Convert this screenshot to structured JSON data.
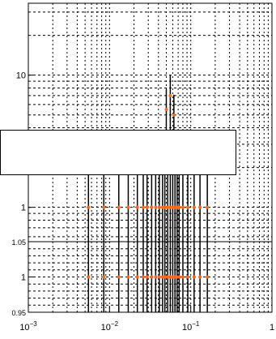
{
  "chart_data": {
    "type": "scatter",
    "x_scale": "log",
    "grid": true,
    "grid_style": "dotted",
    "colors": {
      "marker": "#ff6a1a",
      "axis": "#000000",
      "grid": "#000000"
    },
    "panels": [
      {
        "name": "upper",
        "y_scale": "log",
        "ylim": [
          0.55,
          35
        ],
        "y_tick_labels": [
          {
            "value": 1,
            "text": "1"
          },
          {
            "value": 10,
            "text": "10"
          }
        ],
        "x": [
          0.0055,
          0.0085,
          0.013,
          0.017,
          0.022,
          0.026,
          0.029,
          0.033,
          0.037,
          0.041,
          0.045,
          0.048,
          0.052,
          0.056,
          0.06,
          0.064,
          0.068,
          0.072,
          0.08,
          0.092,
          0.11,
          0.13,
          0.16
        ],
        "y": [
          1,
          1,
          1,
          1,
          1,
          1,
          1,
          1,
          1,
          1,
          1,
          1,
          1,
          1,
          1,
          1,
          1,
          1,
          1,
          1,
          1,
          1,
          1
        ],
        "y_err": [
          0.8,
          0.8,
          0.8,
          0.8,
          0.8,
          0.8,
          0.8,
          0.8,
          0.8,
          0.8,
          0.8,
          0.8,
          0.8,
          0.8,
          0.8,
          0.8,
          0.8,
          0.8,
          0.8,
          0.8,
          0.8,
          0.8,
          0.8
        ]
      },
      {
        "name": "lower",
        "y_scale": "linear",
        "ylim": [
          0.95,
          1.05
        ],
        "y_tick_labels": [
          {
            "value": 0.95,
            "text": "0.95"
          },
          {
            "value": 1.0,
            "text": "1"
          },
          {
            "value": 1.05,
            "text": "1.05"
          }
        ],
        "x": [
          0.0055,
          0.0085,
          0.013,
          0.017,
          0.022,
          0.026,
          0.029,
          0.033,
          0.037,
          0.041,
          0.045,
          0.048,
          0.052,
          0.056,
          0.06,
          0.064,
          0.068,
          0.072,
          0.08,
          0.092,
          0.11,
          0.13,
          0.16
        ],
        "y": [
          1,
          1,
          1,
          1,
          1,
          1,
          1,
          1,
          1,
          1,
          1,
          1,
          1,
          1,
          1,
          1,
          1,
          1,
          1,
          1,
          1,
          1,
          1
        ]
      }
    ],
    "upper_extra_points": [
      {
        "x": 0.05,
        "y": 5.5
      },
      {
        "x": 0.056,
        "y": 7.0
      },
      {
        "x": 0.062,
        "y": 5.0
      }
    ],
    "x_tick_labels": [
      {
        "value": 0.001,
        "base": "10",
        "exp": "−3"
      },
      {
        "value": 0.01,
        "base": "10",
        "exp": "−2"
      },
      {
        "value": 0.1,
        "base": "10",
        "exp": "−1"
      },
      {
        "value": 1,
        "base": "1",
        "exp": ""
      }
    ]
  }
}
